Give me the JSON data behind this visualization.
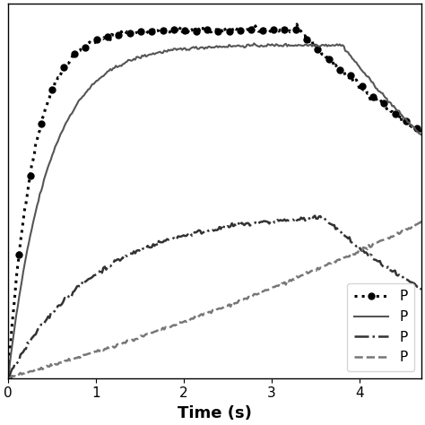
{
  "title": "",
  "xlabel": "Time (s)",
  "ylabel": "",
  "xlim": [
    0,
    4.7
  ],
  "ylim": [
    0,
    1.0
  ],
  "xticks": [
    0,
    1,
    2,
    3,
    4
  ],
  "background_color": "#ffffff",
  "series": [
    {
      "label": "P",
      "style": "dotted",
      "color": "#000000",
      "linewidth": 2.2,
      "marker": "o",
      "markersize": 5,
      "markevery": 8
    },
    {
      "label": "P",
      "style": "solid",
      "color": "#555555",
      "linewidth": 1.5,
      "marker": null,
      "markersize": 0,
      "markevery": null
    },
    {
      "label": "P",
      "style": "dashdot",
      "color": "#333333",
      "linewidth": 1.8,
      "marker": null,
      "markersize": 0,
      "markevery": null
    },
    {
      "label": "P",
      "style": "dashed",
      "color": "#777777",
      "linewidth": 1.8,
      "marker": null,
      "markersize": 0,
      "markevery": null
    }
  ]
}
